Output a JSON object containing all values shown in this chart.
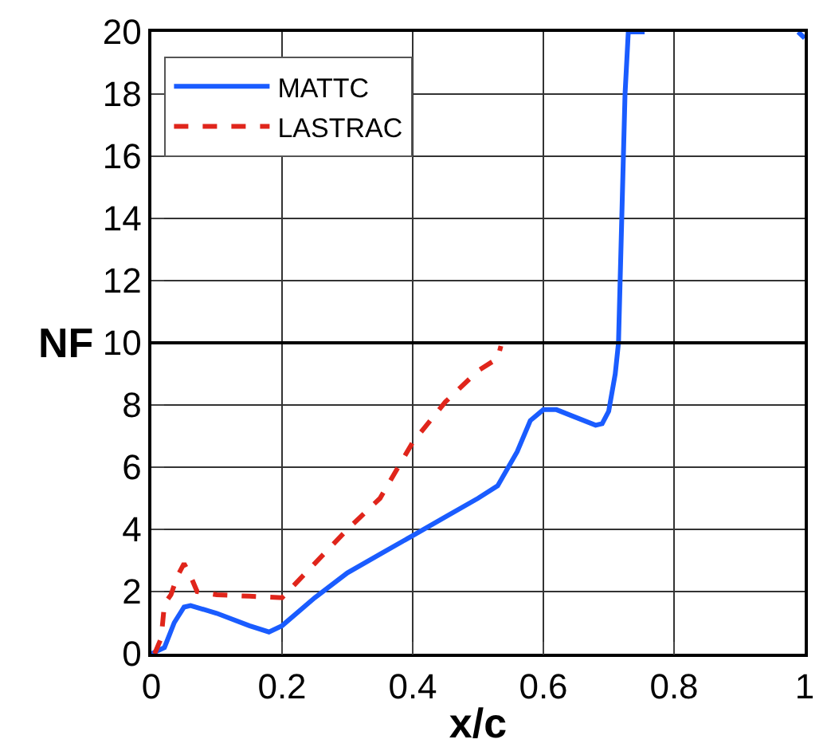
{
  "chart_data": {
    "type": "line",
    "xlabel": "x/c",
    "ylabel": "NF",
    "xlim": [
      0,
      1
    ],
    "xticks": [
      0,
      0.2,
      0.4,
      0.6,
      0.8,
      1
    ],
    "ylim": [
      0,
      20
    ],
    "yticks": [
      0,
      2,
      4,
      6,
      8,
      10,
      12,
      14,
      16,
      18,
      20
    ],
    "grid": true,
    "legend": "top left",
    "ref_lines": [
      {
        "axis": "y",
        "value": 10,
        "color": "#000000"
      }
    ],
    "series": [
      {
        "name": "MATTC",
        "color": "#1a5cff",
        "line_style": "solid",
        "x": [
          0,
          0.02,
          0.035,
          0.05,
          0.06,
          0.1,
          0.15,
          0.18,
          0.2,
          0.25,
          0.3,
          0.35,
          0.4,
          0.45,
          0.5,
          0.53,
          0.56,
          0.58,
          0.6,
          0.62,
          0.65,
          0.68,
          0.69,
          0.7,
          0.71,
          0.715,
          0.72,
          0.725,
          0.73,
          0.755,
          0.87,
          0.99,
          1.0
        ],
        "values": [
          0,
          0.2,
          1.0,
          1.5,
          1.55,
          1.3,
          0.9,
          0.7,
          0.9,
          1.8,
          2.6,
          3.2,
          3.8,
          4.4,
          5.0,
          5.4,
          6.5,
          7.5,
          7.85,
          7.85,
          7.6,
          7.35,
          7.4,
          7.8,
          9.0,
          10,
          14,
          18,
          20,
          20,
          null,
          20,
          19.8
        ]
      },
      {
        "name": "LASTRAC",
        "color": "#e0251b",
        "line_style": "dashed",
        "x": [
          0.005,
          0.015,
          0.02,
          0.03,
          0.04,
          0.05,
          0.06,
          0.07,
          0.1,
          0.15,
          0.2,
          0.25,
          0.3,
          0.35,
          0.4,
          0.45,
          0.5,
          0.53,
          0.535
        ],
        "values": [
          0,
          0.5,
          1.6,
          1.9,
          2.5,
          2.9,
          2.5,
          2.0,
          1.9,
          1.85,
          1.8,
          2.9,
          4.0,
          5.0,
          6.8,
          8.1,
          9.1,
          9.5,
          9.9
        ]
      }
    ]
  }
}
